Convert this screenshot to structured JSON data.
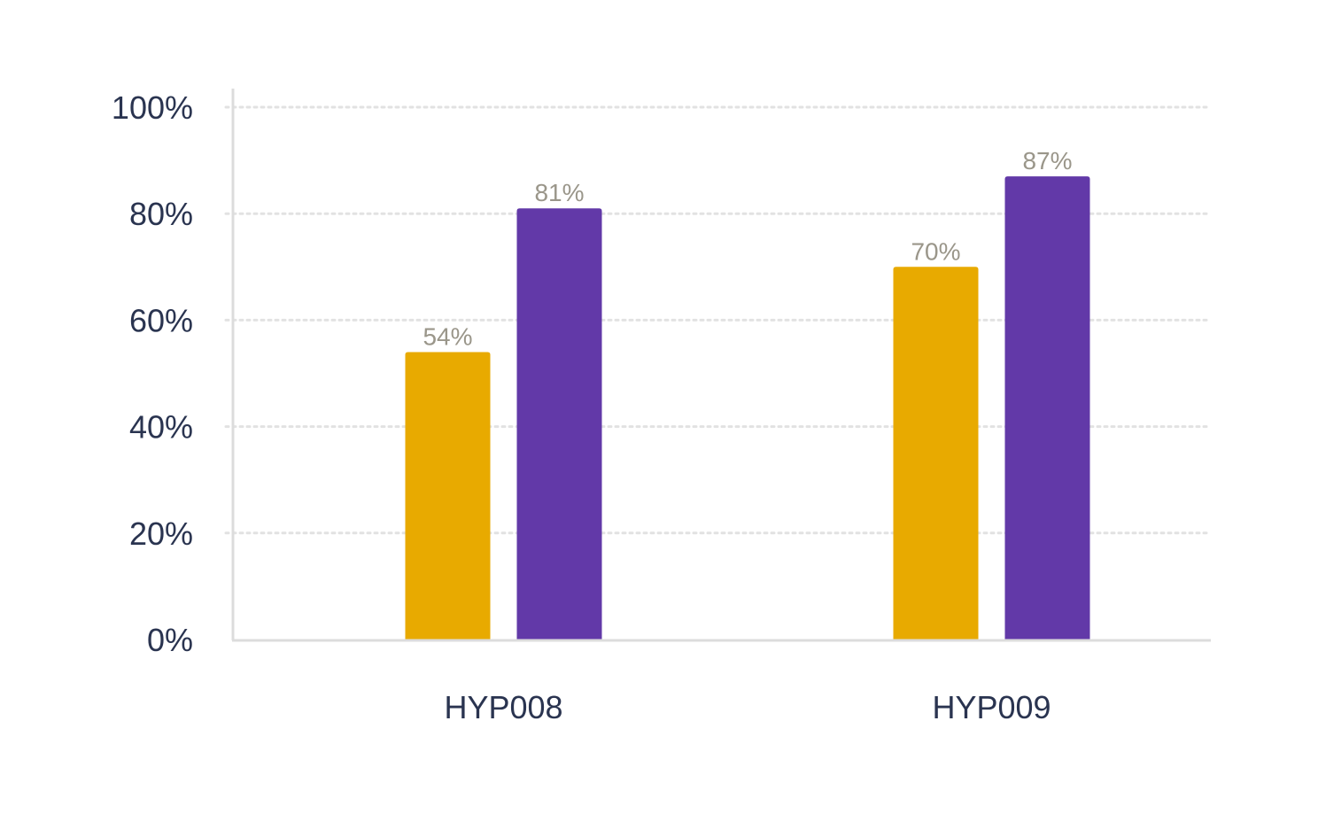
{
  "chart_data": {
    "type": "bar",
    "categories": [
      "HYP008",
      "HYP009"
    ],
    "series": [
      {
        "values": [
          54,
          70
        ],
        "color": "#E8AA00"
      },
      {
        "values": [
          81,
          87
        ],
        "color": "#6239A8"
      }
    ],
    "value_labels": [
      [
        "54%",
        "70%"
      ],
      [
        "81%",
        "87%"
      ]
    ],
    "title": "",
    "xlabel": "",
    "ylabel": "",
    "ylim": [
      0,
      100
    ],
    "y_ticks": [
      "0%",
      "20%",
      "40%",
      "60%",
      "80%",
      "100%"
    ],
    "grid": true,
    "grid_style": "dotted",
    "colors": {
      "axis": "#dcdcdc",
      "grid": "#e2e2e2",
      "tick_text": "#2a3450",
      "value_text": "#9a968a"
    }
  }
}
